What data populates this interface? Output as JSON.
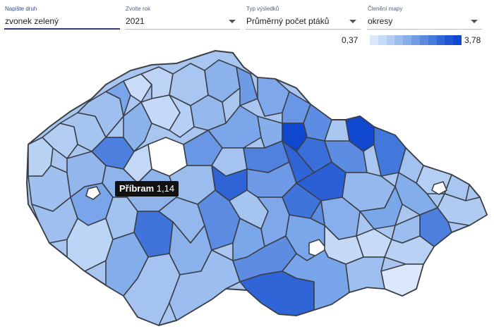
{
  "controls": {
    "species": {
      "label": "Napište druh",
      "value": "zvonek zelený"
    },
    "year": {
      "label": "Zvolte rok",
      "value": "2021"
    },
    "type": {
      "label": "Typ výsledků",
      "value": "Průměrný počet ptáků"
    },
    "split": {
      "label": "Členění mapy",
      "value": "okresy"
    }
  },
  "legend": {
    "min": "0,37",
    "max": "3,78",
    "colors": [
      "#dbe8fb",
      "#c7dbf7",
      "#b2ccf3",
      "#9dbdef",
      "#88aeea",
      "#729ce6",
      "#5c8ae1",
      "#467add",
      "#3167d8",
      "#1f56d4",
      "#1048cf"
    ]
  },
  "map": {
    "border_color": "#3a3f47",
    "tooltip": {
      "name": "Příbram",
      "value": "1,14"
    }
  }
}
